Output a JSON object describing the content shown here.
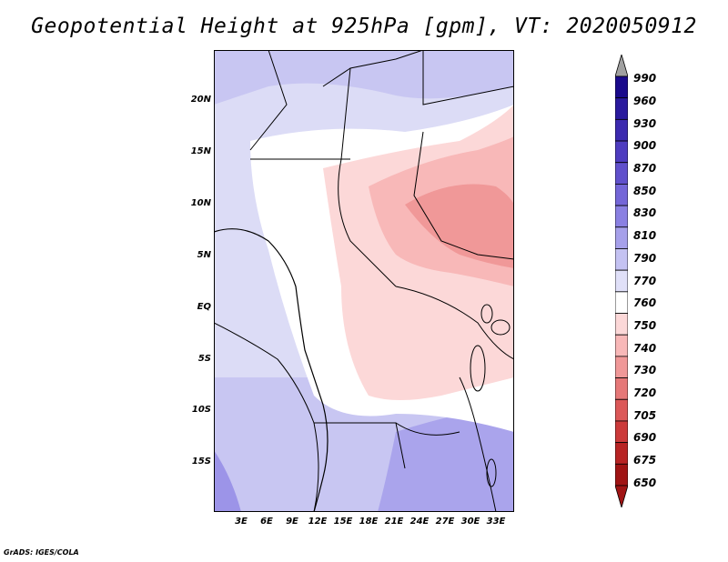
{
  "title": "Geopotential Height at 925hPa [gpm], VT: 2020050912",
  "map": {
    "region": "Central Africa",
    "lat_ticks": [
      "20N",
      "15N",
      "10N",
      "5N",
      "EQ",
      "5S",
      "10S",
      "15S"
    ],
    "lon_ticks": [
      "3E",
      "6E",
      "9E",
      "12E",
      "15E",
      "18E",
      "21E",
      "24E",
      "27E",
      "30E",
      "33E"
    ]
  },
  "colorbar": {
    "levels": [
      "990",
      "960",
      "930",
      "900",
      "870",
      "850",
      "830",
      "810",
      "790",
      "770",
      "760",
      "750",
      "740",
      "730",
      "720",
      "705",
      "690",
      "675",
      "650"
    ],
    "colors": [
      "#1a0a8c",
      "#2a1a9e",
      "#3c2ab0",
      "#4e3cc0",
      "#6050cc",
      "#7466d8",
      "#8a80e2",
      "#a6a0ea",
      "#c4c2f2",
      "#e0e0f8",
      "#ffffff",
      "#fcd8d8",
      "#f8b8b8",
      "#f09898",
      "#e67878",
      "#dc5858",
      "#cc3a3a",
      "#b82424",
      "#a01414"
    ],
    "top_arrow_color": "#a0a0a0",
    "bottom_arrow_color": "#a01414"
  },
  "credit": "GrADS: IGES/COLA"
}
